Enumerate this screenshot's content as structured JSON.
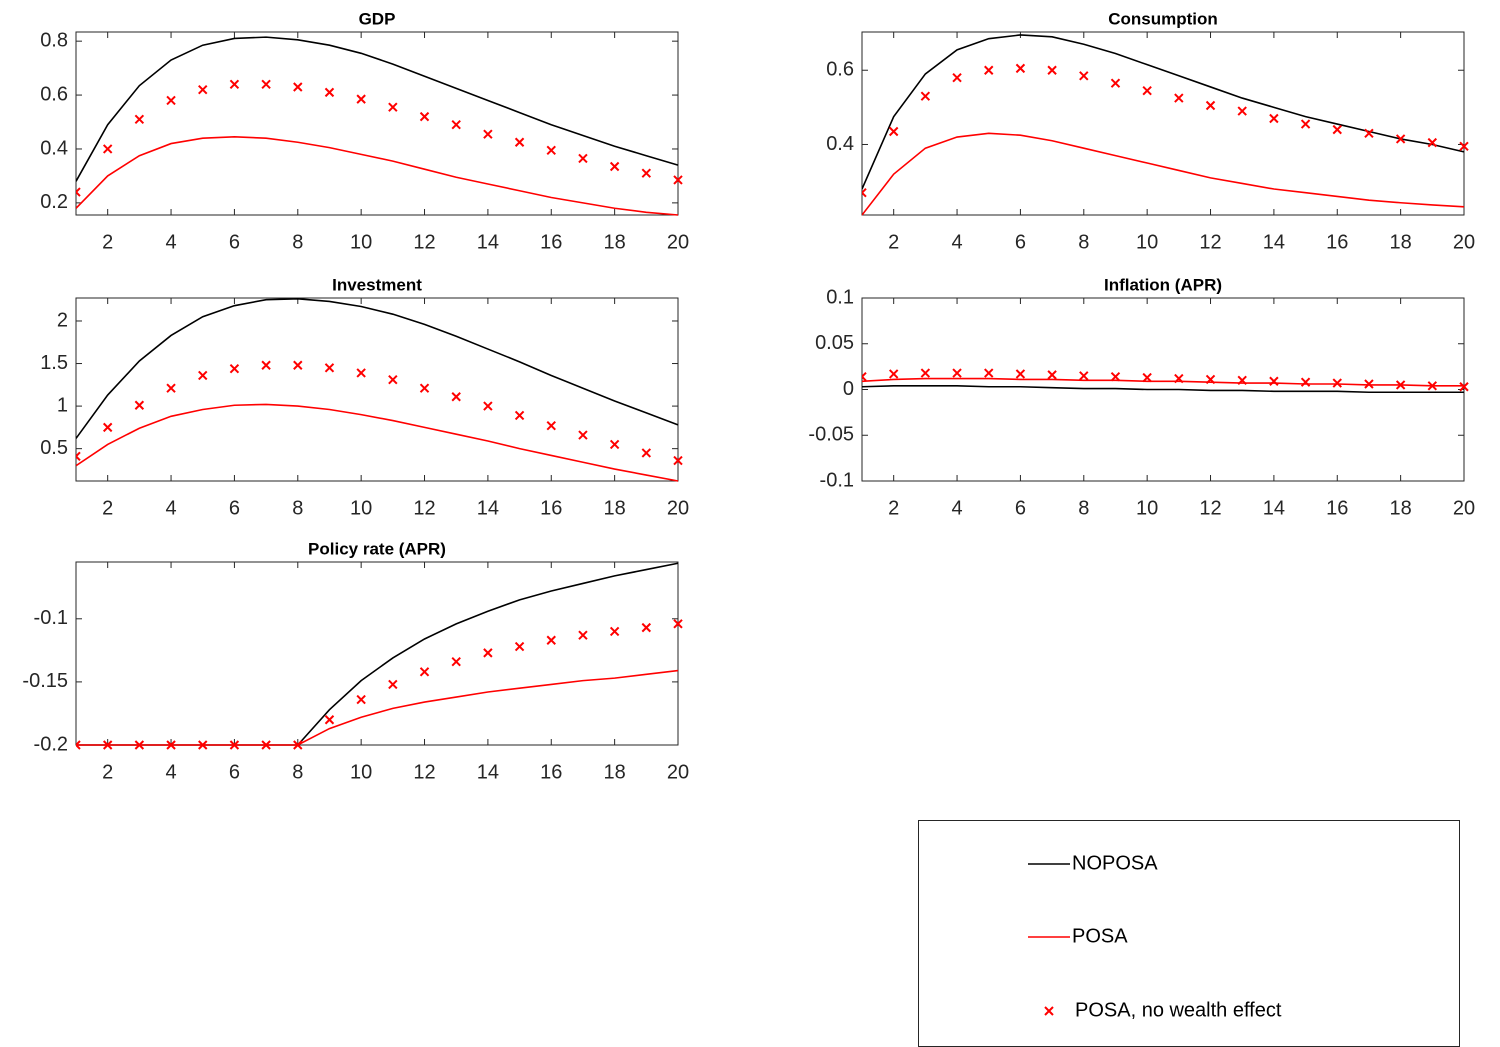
{
  "chart_data": [
    {
      "type": "line",
      "title": "GDP",
      "x": [
        1,
        2,
        3,
        4,
        5,
        6,
        7,
        8,
        9,
        10,
        11,
        12,
        13,
        14,
        15,
        16,
        17,
        18,
        19,
        20
      ],
      "xlim": [
        1,
        20
      ],
      "xticks": [
        2,
        4,
        6,
        8,
        10,
        12,
        14,
        16,
        18,
        20
      ],
      "ylim": [
        0.155,
        0.834
      ],
      "yticks": [
        0.2,
        0.4,
        0.6,
        0.8
      ],
      "series": [
        {
          "name": "NOPOSA",
          "color": "#000000",
          "values": [
            0.28,
            0.49,
            0.635,
            0.73,
            0.785,
            0.81,
            0.815,
            0.805,
            0.785,
            0.755,
            0.715,
            0.67,
            0.625,
            0.58,
            0.535,
            0.49,
            0.45,
            0.41,
            0.375,
            0.34
          ]
        },
        {
          "name": "POSA",
          "color": "#ff0000",
          "values": [
            0.18,
            0.3,
            0.375,
            0.42,
            0.44,
            0.445,
            0.44,
            0.425,
            0.405,
            0.38,
            0.355,
            0.325,
            0.295,
            0.27,
            0.245,
            0.22,
            0.2,
            0.18,
            0.165,
            0.155
          ]
        },
        {
          "name": "POSA, no wealth effect",
          "color": "#ff0000",
          "marker": "x",
          "values": [
            0.24,
            0.4,
            0.51,
            0.58,
            0.62,
            0.64,
            0.64,
            0.63,
            0.61,
            0.585,
            0.555,
            0.52,
            0.49,
            0.455,
            0.425,
            0.395,
            0.365,
            0.335,
            0.31,
            0.285
          ]
        }
      ]
    },
    {
      "type": "line",
      "title": "Consumption",
      "x": [
        1,
        2,
        3,
        4,
        5,
        6,
        7,
        8,
        9,
        10,
        11,
        12,
        13,
        14,
        15,
        16,
        17,
        18,
        19,
        20
      ],
      "xlim": [
        1,
        20
      ],
      "xticks": [
        2,
        4,
        6,
        8,
        10,
        12,
        14,
        16,
        18,
        20
      ],
      "ylim": [
        0.21,
        0.703
      ],
      "yticks": [
        0.4,
        0.6
      ],
      "series": [
        {
          "name": "NOPOSA",
          "color": "#000000",
          "values": [
            0.28,
            0.475,
            0.59,
            0.655,
            0.685,
            0.695,
            0.69,
            0.67,
            0.645,
            0.615,
            0.585,
            0.555,
            0.525,
            0.5,
            0.475,
            0.455,
            0.435,
            0.415,
            0.4,
            0.38
          ]
        },
        {
          "name": "POSA",
          "color": "#ff0000",
          "values": [
            0.21,
            0.32,
            0.39,
            0.42,
            0.43,
            0.425,
            0.41,
            0.39,
            0.37,
            0.35,
            0.33,
            0.31,
            0.295,
            0.28,
            0.27,
            0.26,
            0.25,
            0.243,
            0.237,
            0.232
          ]
        },
        {
          "name": "POSA, no wealth effect",
          "color": "#ff0000",
          "marker": "x",
          "values": [
            0.27,
            0.435,
            0.53,
            0.58,
            0.6,
            0.605,
            0.6,
            0.585,
            0.565,
            0.545,
            0.525,
            0.505,
            0.49,
            0.47,
            0.455,
            0.44,
            0.43,
            0.415,
            0.405,
            0.395
          ]
        }
      ]
    },
    {
      "type": "line",
      "title": "Investment",
      "x": [
        1,
        2,
        3,
        4,
        5,
        6,
        7,
        8,
        9,
        10,
        11,
        12,
        13,
        14,
        15,
        16,
        17,
        18,
        19,
        20
      ],
      "xlim": [
        1,
        20
      ],
      "xticks": [
        2,
        4,
        6,
        8,
        10,
        12,
        14,
        16,
        18,
        20
      ],
      "ylim": [
        0.12,
        2.27
      ],
      "yticks": [
        0.5,
        1,
        1.5,
        2
      ],
      "series": [
        {
          "name": "NOPOSA",
          "color": "#000000",
          "values": [
            0.62,
            1.13,
            1.53,
            1.83,
            2.05,
            2.18,
            2.25,
            2.26,
            2.23,
            2.17,
            2.08,
            1.96,
            1.82,
            1.67,
            1.52,
            1.36,
            1.21,
            1.06,
            0.92,
            0.78
          ]
        },
        {
          "name": "POSA",
          "color": "#ff0000",
          "values": [
            0.3,
            0.55,
            0.74,
            0.88,
            0.96,
            1.01,
            1.02,
            1.0,
            0.96,
            0.9,
            0.83,
            0.75,
            0.67,
            0.59,
            0.5,
            0.42,
            0.34,
            0.26,
            0.19,
            0.12
          ]
        },
        {
          "name": "POSA, no wealth effect",
          "color": "#ff0000",
          "marker": "x",
          "values": [
            0.41,
            0.75,
            1.01,
            1.21,
            1.36,
            1.44,
            1.48,
            1.48,
            1.45,
            1.39,
            1.31,
            1.21,
            1.11,
            1.0,
            0.89,
            0.77,
            0.66,
            0.55,
            0.45,
            0.36
          ]
        }
      ]
    },
    {
      "type": "line",
      "title": "Inflation (APR)",
      "x": [
        1,
        2,
        3,
        4,
        5,
        6,
        7,
        8,
        9,
        10,
        11,
        12,
        13,
        14,
        15,
        16,
        17,
        18,
        19,
        20
      ],
      "xlim": [
        1,
        20
      ],
      "xticks": [
        2,
        4,
        6,
        8,
        10,
        12,
        14,
        16,
        18,
        20
      ],
      "ylim": [
        -0.1,
        0.1
      ],
      "yticks": [
        -0.1,
        -0.05,
        0,
        0.05,
        0.1
      ],
      "series": [
        {
          "name": "NOPOSA",
          "color": "#000000",
          "values": [
            0.003,
            0.004,
            0.004,
            0.004,
            0.003,
            0.003,
            0.002,
            0.001,
            0.001,
            0,
            0,
            -0.001,
            -0.001,
            -0.002,
            -0.002,
            -0.002,
            -0.003,
            -0.003,
            -0.003,
            -0.003
          ]
        },
        {
          "name": "POSA",
          "color": "#ff0000",
          "values": [
            0.009,
            0.011,
            0.012,
            0.012,
            0.012,
            0.011,
            0.011,
            0.01,
            0.01,
            0.009,
            0.009,
            0.008,
            0.007,
            0.007,
            0.006,
            0.006,
            0.005,
            0.005,
            0.004,
            0.004
          ]
        },
        {
          "name": "POSA, no wealth effect",
          "color": "#ff0000",
          "marker": "x",
          "values": [
            0.014,
            0.017,
            0.018,
            0.018,
            0.018,
            0.017,
            0.016,
            0.015,
            0.014,
            0.013,
            0.012,
            0.011,
            0.01,
            0.009,
            0.008,
            0.007,
            0.006,
            0.005,
            0.004,
            0.003
          ]
        }
      ]
    },
    {
      "type": "line",
      "title": "Policy rate (APR)",
      "x": [
        1,
        2,
        3,
        4,
        5,
        6,
        7,
        8,
        9,
        10,
        11,
        12,
        13,
        14,
        15,
        16,
        17,
        18,
        19,
        20
      ],
      "xlim": [
        1,
        20
      ],
      "xticks": [
        2,
        4,
        6,
        8,
        10,
        12,
        14,
        16,
        18,
        20
      ],
      "ylim": [
        -0.2,
        -0.055
      ],
      "yticks": [
        -0.2,
        -0.15,
        -0.1
      ],
      "series": [
        {
          "name": "NOPOSA",
          "color": "#000000",
          "values": [
            -0.2,
            -0.2,
            -0.2,
            -0.2,
            -0.2,
            -0.2,
            -0.2,
            -0.2,
            -0.172,
            -0.149,
            -0.131,
            -0.116,
            -0.104,
            -0.094,
            -0.085,
            -0.078,
            -0.072,
            -0.066,
            -0.061,
            -0.056
          ]
        },
        {
          "name": "POSA",
          "color": "#ff0000",
          "values": [
            -0.2,
            -0.2,
            -0.2,
            -0.2,
            -0.2,
            -0.2,
            -0.2,
            -0.2,
            -0.187,
            -0.178,
            -0.171,
            -0.166,
            -0.162,
            -0.158,
            -0.155,
            -0.152,
            -0.149,
            -0.147,
            -0.144,
            -0.141
          ]
        },
        {
          "name": "POSA, no wealth effect",
          "color": "#ff0000",
          "marker": "x",
          "values": [
            -0.2,
            -0.2,
            -0.2,
            -0.2,
            -0.2,
            -0.2,
            -0.2,
            -0.2,
            -0.18,
            -0.164,
            -0.152,
            -0.142,
            -0.134,
            -0.127,
            -0.122,
            -0.117,
            -0.113,
            -0.11,
            -0.107,
            -0.104
          ]
        }
      ]
    }
  ]
}
